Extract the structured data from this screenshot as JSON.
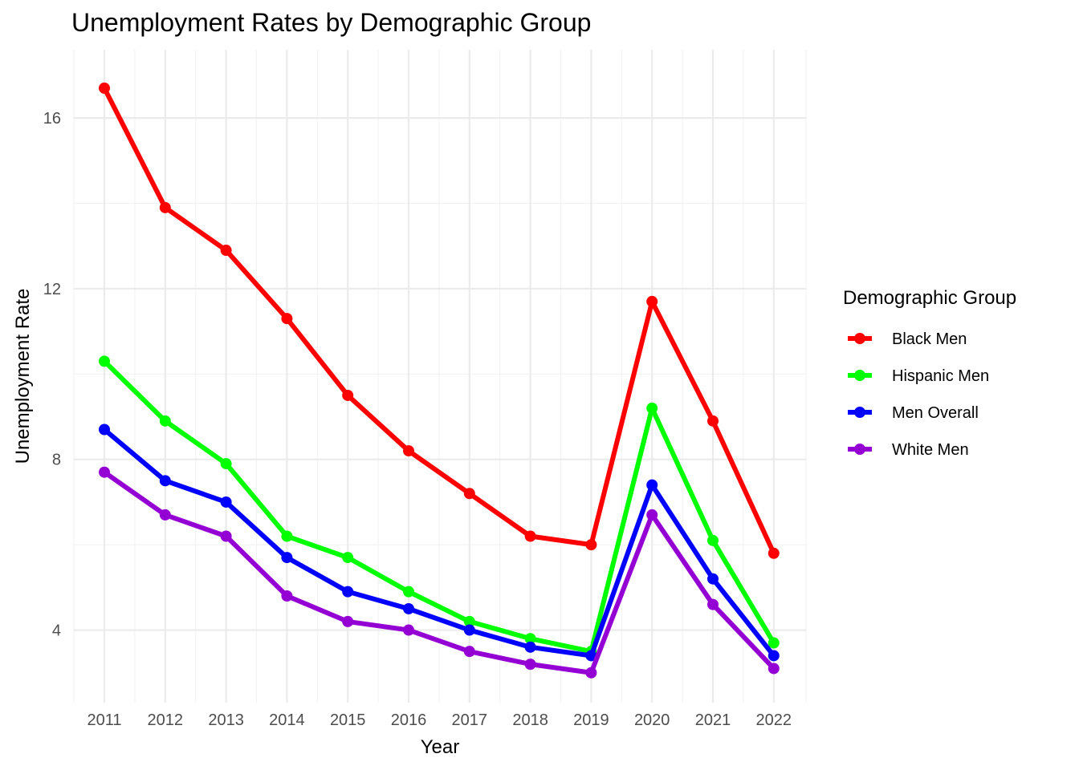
{
  "chart_data": {
    "type": "line",
    "title": "Unemployment Rates by Demographic Group",
    "xlabel": "Year",
    "ylabel": "Unemployment Rate",
    "x": [
      2011,
      2012,
      2013,
      2014,
      2015,
      2016,
      2017,
      2018,
      2019,
      2020,
      2021,
      2022
    ],
    "xticks": [
      "2011",
      "2012",
      "2013",
      "2014",
      "2015",
      "2016",
      "2017",
      "2018",
      "2019",
      "2020",
      "2021",
      "2022"
    ],
    "yticks": [
      4,
      8,
      12,
      16
    ],
    "ytick_labels": [
      "4",
      "8",
      "12",
      "16"
    ],
    "ylim": [
      2.3,
      17.6
    ],
    "grid": true,
    "legend": {
      "title": "Demographic Group",
      "position": "right"
    },
    "series": [
      {
        "name": "Black Men",
        "color": "#ff0000",
        "values": [
          16.7,
          13.9,
          12.9,
          11.3,
          9.5,
          8.2,
          7.2,
          6.2,
          6.0,
          11.7,
          8.9,
          5.8
        ]
      },
      {
        "name": "Hispanic Men",
        "color": "#00ff00",
        "values": [
          10.3,
          8.9,
          7.9,
          6.2,
          5.7,
          4.9,
          4.2,
          3.8,
          3.5,
          9.2,
          6.1,
          3.7
        ]
      },
      {
        "name": "Men Overall",
        "color": "#0000ff",
        "values": [
          8.7,
          7.5,
          7.0,
          5.7,
          4.9,
          4.5,
          4.0,
          3.6,
          3.4,
          7.4,
          5.2,
          3.4
        ]
      },
      {
        "name": "White Men",
        "color": "#9400d3",
        "values": [
          7.7,
          6.7,
          6.2,
          4.8,
          4.2,
          4.0,
          3.5,
          3.2,
          3.0,
          6.7,
          4.6,
          3.1
        ]
      }
    ]
  }
}
